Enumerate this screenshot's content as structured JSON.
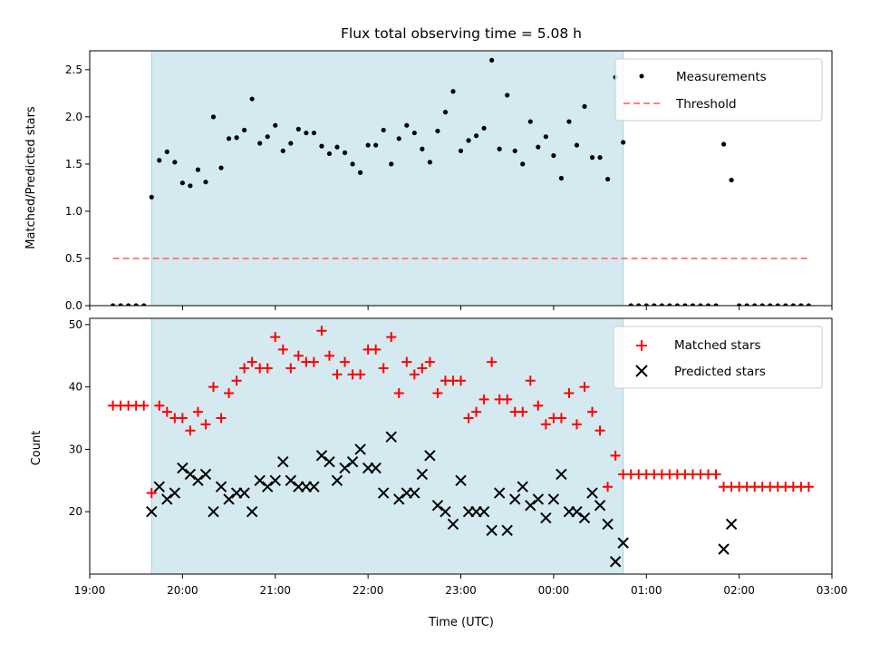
{
  "chart_data": [
    {
      "type": "scatter",
      "title": "Flux total observing time = 5.08 h",
      "xlabel": "",
      "ylabel": "Matched/Predicted stars",
      "xlim": [
        "19:00",
        "03:00"
      ],
      "ylim": [
        0,
        2.7
      ],
      "y_ticks": [
        "0.0",
        "0.5",
        "1.0",
        "1.5",
        "2.0",
        "2.5"
      ],
      "shaded_span": [
        "19:40",
        "00:45"
      ],
      "shade_color": "#d4eaf0",
      "legend_position": "top-right",
      "series": [
        {
          "name": "Measurements",
          "marker": "dot",
          "color": "#000000",
          "points": [
            [
              "19:15",
              0
            ],
            [
              "19:20",
              0
            ],
            [
              "19:25",
              0
            ],
            [
              "19:30",
              0
            ],
            [
              "19:35",
              0
            ],
            [
              "19:40",
              1.15
            ],
            [
              "19:45",
              1.54
            ],
            [
              "19:50",
              1.63
            ],
            [
              "19:55",
              1.52
            ],
            [
              "20:00",
              1.3
            ],
            [
              "20:05",
              1.27
            ],
            [
              "20:10",
              1.44
            ],
            [
              "20:15",
              1.31
            ],
            [
              "20:20",
              2.0
            ],
            [
              "20:25",
              1.46
            ],
            [
              "20:30",
              1.77
            ],
            [
              "20:35",
              1.78
            ],
            [
              "20:40",
              1.86
            ],
            [
              "20:45",
              2.19
            ],
            [
              "20:50",
              1.72
            ],
            [
              "20:55",
              1.79
            ],
            [
              "21:00",
              1.91
            ],
            [
              "21:05",
              1.64
            ],
            [
              "21:10",
              1.72
            ],
            [
              "21:15",
              1.87
            ],
            [
              "21:20",
              1.83
            ],
            [
              "21:25",
              1.83
            ],
            [
              "21:30",
              1.69
            ],
            [
              "21:35",
              1.61
            ],
            [
              "21:40",
              1.68
            ],
            [
              "21:45",
              1.62
            ],
            [
              "21:50",
              1.5
            ],
            [
              "21:55",
              1.41
            ],
            [
              "22:00",
              1.7
            ],
            [
              "22:05",
              1.7
            ],
            [
              "22:10",
              1.86
            ],
            [
              "22:15",
              1.5
            ],
            [
              "22:20",
              1.77
            ],
            [
              "22:25",
              1.91
            ],
            [
              "22:30",
              1.83
            ],
            [
              "22:35",
              1.66
            ],
            [
              "22:40",
              1.52
            ],
            [
              "22:45",
              1.85
            ],
            [
              "22:50",
              2.05
            ],
            [
              "22:55",
              2.27
            ],
            [
              "23:00",
              1.64
            ],
            [
              "23:05",
              1.75
            ],
            [
              "23:10",
              1.8
            ],
            [
              "23:15",
              1.88
            ],
            [
              "23:20",
              2.6
            ],
            [
              "23:25",
              1.66
            ],
            [
              "23:30",
              2.23
            ],
            [
              "23:35",
              1.64
            ],
            [
              "23:40",
              1.5
            ],
            [
              "23:45",
              1.95
            ],
            [
              "23:50",
              1.68
            ],
            [
              "23:55",
              1.79
            ],
            [
              "00:00",
              1.59
            ],
            [
              "00:05",
              1.35
            ],
            [
              "00:10",
              1.95
            ],
            [
              "00:15",
              1.7
            ],
            [
              "00:20",
              2.11
            ],
            [
              "00:25",
              1.57
            ],
            [
              "00:30",
              1.57
            ],
            [
              "00:35",
              1.34
            ],
            [
              "00:40",
              2.42
            ],
            [
              "00:45",
              1.73
            ],
            [
              "00:50",
              0
            ],
            [
              "00:55",
              0
            ],
            [
              "01:00",
              0
            ],
            [
              "01:05",
              0
            ],
            [
              "01:10",
              0
            ],
            [
              "01:15",
              0
            ],
            [
              "01:20",
              0
            ],
            [
              "01:25",
              0
            ],
            [
              "01:30",
              0
            ],
            [
              "01:35",
              0
            ],
            [
              "01:40",
              0
            ],
            [
              "01:45",
              0
            ],
            [
              "01:50",
              1.71
            ],
            [
              "01:55",
              1.33
            ],
            [
              "02:00",
              0
            ],
            [
              "02:05",
              0
            ],
            [
              "02:10",
              0
            ],
            [
              "02:15",
              0
            ],
            [
              "02:20",
              0
            ],
            [
              "02:25",
              0
            ],
            [
              "02:30",
              0
            ],
            [
              "02:35",
              0
            ],
            [
              "02:40",
              0
            ],
            [
              "02:45",
              0
            ]
          ]
        },
        {
          "name": "Threshold",
          "marker": "dashed-line",
          "color": "#ff7f7f",
          "points": [
            [
              "19:15",
              0.5
            ],
            [
              "02:45",
              0.5
            ]
          ]
        }
      ]
    },
    {
      "type": "scatter",
      "title": "",
      "xlabel": "Time (UTC)",
      "ylabel": "Count",
      "xlim": [
        "19:00",
        "03:00"
      ],
      "ylim": [
        10,
        51
      ],
      "x_ticks": [
        "19:00",
        "20:00",
        "21:00",
        "22:00",
        "23:00",
        "00:00",
        "01:00",
        "02:00",
        "03:00"
      ],
      "y_ticks": [
        "20",
        "30",
        "40",
        "50"
      ],
      "shaded_span": [
        "19:40",
        "00:45"
      ],
      "shade_color": "#d4eaf0",
      "legend_position": "top-right",
      "series": [
        {
          "name": "Matched stars",
          "marker": "plus",
          "color": "#ff0000",
          "points": [
            [
              "19:15",
              37
            ],
            [
              "19:20",
              37
            ],
            [
              "19:25",
              37
            ],
            [
              "19:30",
              37
            ],
            [
              "19:35",
              37
            ],
            [
              "19:40",
              23
            ],
            [
              "19:45",
              37
            ],
            [
              "19:50",
              36
            ],
            [
              "19:55",
              35
            ],
            [
              "20:00",
              35
            ],
            [
              "20:05",
              33
            ],
            [
              "20:10",
              36
            ],
            [
              "20:15",
              34
            ],
            [
              "20:20",
              40
            ],
            [
              "20:25",
              35
            ],
            [
              "20:30",
              39
            ],
            [
              "20:35",
              41
            ],
            [
              "20:40",
              43
            ],
            [
              "20:45",
              44
            ],
            [
              "20:50",
              43
            ],
            [
              "20:55",
              43
            ],
            [
              "21:00",
              48
            ],
            [
              "21:05",
              46
            ],
            [
              "21:10",
              43
            ],
            [
              "21:15",
              45
            ],
            [
              "21:20",
              44
            ],
            [
              "21:25",
              44
            ],
            [
              "21:30",
              49
            ],
            [
              "21:35",
              45
            ],
            [
              "21:40",
              42
            ],
            [
              "21:45",
              44
            ],
            [
              "21:50",
              42
            ],
            [
              "21:55",
              42
            ],
            [
              "22:00",
              46
            ],
            [
              "22:05",
              46
            ],
            [
              "22:10",
              43
            ],
            [
              "22:15",
              48
            ],
            [
              "22:20",
              39
            ],
            [
              "22:25",
              44
            ],
            [
              "22:30",
              42
            ],
            [
              "22:35",
              43
            ],
            [
              "22:40",
              44
            ],
            [
              "22:45",
              39
            ],
            [
              "22:50",
              41
            ],
            [
              "22:55",
              41
            ],
            [
              "23:00",
              41
            ],
            [
              "23:05",
              35
            ],
            [
              "23:10",
              36
            ],
            [
              "23:15",
              38
            ],
            [
              "23:20",
              44
            ],
            [
              "23:25",
              38
            ],
            [
              "23:30",
              38
            ],
            [
              "23:35",
              36
            ],
            [
              "23:40",
              36
            ],
            [
              "23:45",
              41
            ],
            [
              "23:50",
              37
            ],
            [
              "23:55",
              34
            ],
            [
              "00:00",
              35
            ],
            [
              "00:05",
              35
            ],
            [
              "00:10",
              39
            ],
            [
              "00:15",
              34
            ],
            [
              "00:20",
              40
            ],
            [
              "00:25",
              36
            ],
            [
              "00:30",
              33
            ],
            [
              "00:35",
              24
            ],
            [
              "00:40",
              29
            ],
            [
              "00:45",
              26
            ],
            [
              "00:50",
              26
            ],
            [
              "00:55",
              26
            ],
            [
              "01:00",
              26
            ],
            [
              "01:05",
              26
            ],
            [
              "01:10",
              26
            ],
            [
              "01:15",
              26
            ],
            [
              "01:20",
              26
            ],
            [
              "01:25",
              26
            ],
            [
              "01:30",
              26
            ],
            [
              "01:35",
              26
            ],
            [
              "01:40",
              26
            ],
            [
              "01:45",
              26
            ],
            [
              "01:50",
              24
            ],
            [
              "01:55",
              24
            ],
            [
              "02:00",
              24
            ],
            [
              "02:05",
              24
            ],
            [
              "02:10",
              24
            ],
            [
              "02:15",
              24
            ],
            [
              "02:20",
              24
            ],
            [
              "02:25",
              24
            ],
            [
              "02:30",
              24
            ],
            [
              "02:35",
              24
            ],
            [
              "02:40",
              24
            ],
            [
              "02:45",
              24
            ]
          ]
        },
        {
          "name": "Predicted stars",
          "marker": "x",
          "color": "#000000",
          "points": [
            [
              "19:40",
              20
            ],
            [
              "19:45",
              24
            ],
            [
              "19:50",
              22
            ],
            [
              "19:55",
              23
            ],
            [
              "20:00",
              27
            ],
            [
              "20:05",
              26
            ],
            [
              "20:10",
              25
            ],
            [
              "20:15",
              26
            ],
            [
              "20:20",
              20
            ],
            [
              "20:25",
              24
            ],
            [
              "20:30",
              22
            ],
            [
              "20:35",
              23
            ],
            [
              "20:40",
              23
            ],
            [
              "20:45",
              20
            ],
            [
              "20:50",
              25
            ],
            [
              "20:55",
              24
            ],
            [
              "21:00",
              25
            ],
            [
              "21:05",
              28
            ],
            [
              "21:10",
              25
            ],
            [
              "21:15",
              24
            ],
            [
              "21:20",
              24
            ],
            [
              "21:25",
              24
            ],
            [
              "21:30",
              29
            ],
            [
              "21:35",
              28
            ],
            [
              "21:40",
              25
            ],
            [
              "21:45",
              27
            ],
            [
              "21:50",
              28
            ],
            [
              "21:55",
              30
            ],
            [
              "22:00",
              27
            ],
            [
              "22:05",
              27
            ],
            [
              "22:10",
              23
            ],
            [
              "22:15",
              32
            ],
            [
              "22:20",
              22
            ],
            [
              "22:25",
              23
            ],
            [
              "22:30",
              23
            ],
            [
              "22:35",
              26
            ],
            [
              "22:40",
              29
            ],
            [
              "22:45",
              21
            ],
            [
              "22:50",
              20
            ],
            [
              "22:55",
              18
            ],
            [
              "23:00",
              25
            ],
            [
              "23:05",
              20
            ],
            [
              "23:10",
              20
            ],
            [
              "23:15",
              20
            ],
            [
              "23:20",
              17
            ],
            [
              "23:25",
              23
            ],
            [
              "23:30",
              17
            ],
            [
              "23:35",
              22
            ],
            [
              "23:40",
              24
            ],
            [
              "23:45",
              21
            ],
            [
              "23:50",
              22
            ],
            [
              "23:55",
              19
            ],
            [
              "00:00",
              22
            ],
            [
              "00:05",
              26
            ],
            [
              "00:10",
              20
            ],
            [
              "00:15",
              20
            ],
            [
              "00:20",
              19
            ],
            [
              "00:25",
              23
            ],
            [
              "00:30",
              21
            ],
            [
              "00:35",
              18
            ],
            [
              "00:40",
              12
            ],
            [
              "00:45",
              15
            ],
            [
              "01:50",
              14
            ],
            [
              "01:55",
              18
            ]
          ]
        }
      ]
    }
  ]
}
